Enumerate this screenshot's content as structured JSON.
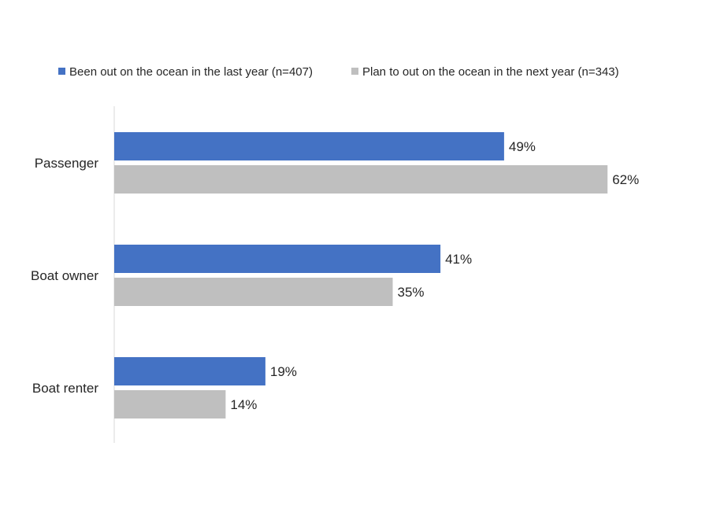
{
  "chart_data": {
    "type": "bar",
    "orientation": "horizontal",
    "title": "",
    "xlabel": "",
    "ylabel": "",
    "categories": [
      "Passenger",
      "Boat owner",
      "Boat renter"
    ],
    "series": [
      {
        "name": "Been out on the ocean in the last year (n=407)",
        "color": "#4472C4",
        "values": [
          49,
          41,
          19
        ],
        "labels": [
          "49%",
          "41%",
          "19%"
        ]
      },
      {
        "name": "Plan to out on the ocean in the next year (n=343)",
        "color": "#BFBFBF",
        "values": [
          62,
          35,
          14
        ],
        "labels": [
          "62%",
          "35%",
          "14%"
        ]
      }
    ],
    "xlim": [
      0,
      100
    ],
    "grid": false,
    "legend_position": "top"
  }
}
